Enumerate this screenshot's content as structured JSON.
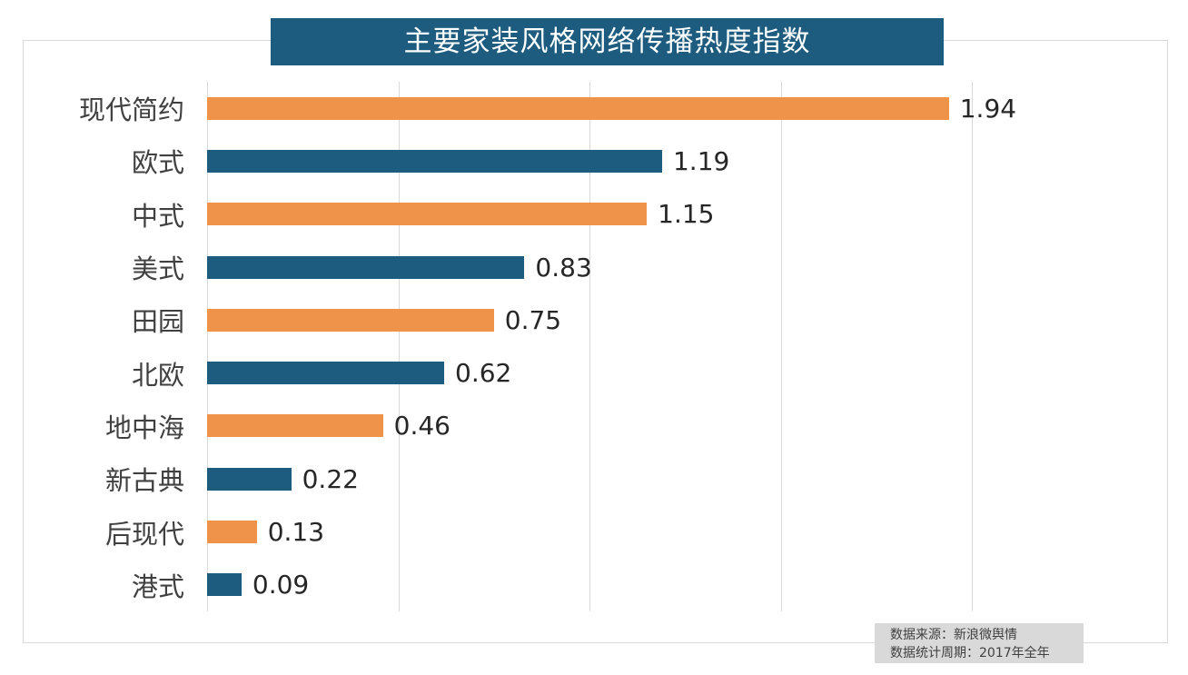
{
  "title": {
    "text": "主要家装风格网络传播热度指数",
    "bg_color": "#1e5c7f",
    "text_color": "#ffffff"
  },
  "chart_data": {
    "type": "bar",
    "orientation": "horizontal",
    "title": "主要家装风格网络传播热度指数",
    "categories": [
      "现代简约",
      "欧式",
      "中式",
      "美式",
      "田园",
      "北欧",
      "地中海",
      "新古典",
      "后现代",
      "港式"
    ],
    "values": [
      1.94,
      1.19,
      1.15,
      0.83,
      0.75,
      0.62,
      0.46,
      0.22,
      0.13,
      0.09
    ],
    "value_labels": [
      "1.94",
      "1.19",
      "1.15",
      "0.83",
      "0.75",
      "0.62",
      "0.46",
      "0.22",
      "0.13",
      "0.09"
    ],
    "xlabel": "",
    "ylabel": "",
    "xlim": [
      0,
      2.0
    ],
    "gridline_ticks": [
      0,
      0.5,
      1.0,
      1.5,
      2.0
    ],
    "grid": "vertical-only",
    "legend": "none",
    "bar_colors_alternating": [
      "#f0934a",
      "#1e5c7f"
    ]
  },
  "footnote": {
    "line1": "数据来源：新浪微舆情",
    "line2": "数据统计周期：2017年全年"
  },
  "colors": {
    "orange": "#f0934a",
    "teal": "#1e5c7f",
    "gridline": "#d9d9d9",
    "border": "#d9d9d9",
    "category_text": "#404040",
    "value_text": "#262626",
    "footnote_bg": "#d9d9d9",
    "footnote_text": "#404040"
  }
}
